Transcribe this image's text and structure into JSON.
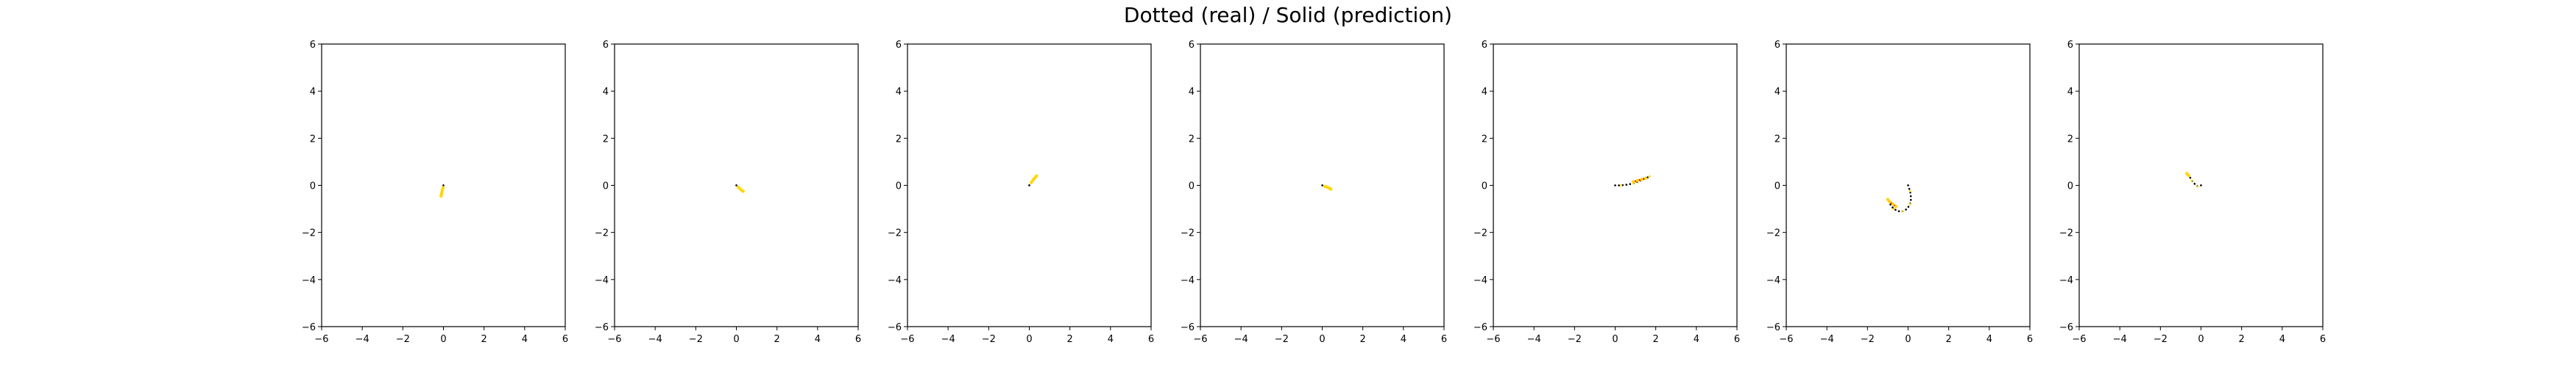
{
  "figure": {
    "title": "Dotted (real) / Solid (prediction)"
  },
  "colors": {
    "real": "#000000",
    "prediction": "#ff0000",
    "markers": "#ffd700",
    "axes": "#000000"
  },
  "chart_data": [
    {
      "type": "line",
      "xlim": [
        -6,
        6
      ],
      "ylim": [
        -6,
        6
      ],
      "xticks": [
        -6,
        -4,
        -2,
        0,
        2,
        4,
        6
      ],
      "yticks": [
        -6,
        -4,
        -2,
        0,
        2,
        4,
        6
      ],
      "series": [
        {
          "style": "dotted",
          "x": [
            0.0,
            -0.02,
            -0.05,
            -0.08,
            -0.1,
            -0.12
          ],
          "y": [
            0.0,
            -0.1,
            -0.2,
            -0.3,
            -0.4,
            -0.45
          ]
        },
        {
          "style": "solid",
          "x": [
            -0.02,
            -0.05,
            -0.08,
            -0.1,
            -0.12
          ],
          "y": [
            -0.1,
            -0.2,
            -0.3,
            -0.38,
            -0.45
          ]
        }
      ]
    },
    {
      "type": "line",
      "xlim": [
        -6,
        6
      ],
      "ylim": [
        -6,
        6
      ],
      "xticks": [
        -6,
        -4,
        -2,
        0,
        2,
        4,
        6
      ],
      "yticks": [
        -6,
        -4,
        -2,
        0,
        2,
        4,
        6
      ],
      "series": [
        {
          "style": "dotted",
          "x": [
            0.0,
            0.08,
            0.15,
            0.22,
            0.3,
            0.35
          ],
          "y": [
            0.0,
            -0.06,
            -0.12,
            -0.17,
            -0.22,
            -0.25
          ]
        },
        {
          "style": "solid",
          "x": [
            0.1,
            0.18,
            0.26,
            0.33
          ],
          "y": [
            -0.08,
            -0.15,
            -0.21,
            -0.25
          ]
        }
      ]
    },
    {
      "type": "line",
      "xlim": [
        -6,
        6
      ],
      "ylim": [
        -6,
        6
      ],
      "xticks": [
        -6,
        -4,
        -2,
        0,
        2,
        4,
        6
      ],
      "yticks": [
        -6,
        -4,
        -2,
        0,
        2,
        4,
        6
      ],
      "series": [
        {
          "style": "dotted",
          "x": [
            0.0,
            0.08,
            0.15,
            0.22,
            0.3,
            0.38,
            0.42
          ],
          "y": [
            0.0,
            0.1,
            0.2,
            0.28,
            0.35,
            0.42,
            0.48
          ]
        },
        {
          "style": "solid",
          "x": [
            0.1,
            0.18,
            0.26,
            0.34
          ],
          "y": [
            0.12,
            0.22,
            0.3,
            0.38
          ]
        }
      ]
    },
    {
      "type": "line",
      "xlim": [
        -6,
        6
      ],
      "ylim": [
        -6,
        6
      ],
      "xticks": [
        -6,
        -4,
        -2,
        0,
        2,
        4,
        6
      ],
      "yticks": [
        -6,
        -4,
        -2,
        0,
        2,
        4,
        6
      ],
      "series": [
        {
          "style": "dotted",
          "x": [
            0.0,
            0.1,
            0.2,
            0.3,
            0.4
          ],
          "y": [
            0.0,
            -0.03,
            -0.06,
            -0.1,
            -0.15
          ]
        },
        {
          "style": "solid",
          "x": [
            0.15,
            0.25,
            0.35,
            0.42
          ],
          "y": [
            -0.05,
            -0.08,
            -0.12,
            -0.16
          ]
        }
      ]
    },
    {
      "type": "line",
      "xlim": [
        -6,
        6
      ],
      "ylim": [
        -6,
        6
      ],
      "xticks": [
        -6,
        -4,
        -2,
        0,
        2,
        4,
        6
      ],
      "yticks": [
        -6,
        -4,
        -2,
        0,
        2,
        4,
        6
      ],
      "series": [
        {
          "style": "dotted",
          "x": [
            0.0,
            0.3,
            0.6,
            0.9,
            1.1,
            1.3,
            1.5,
            1.7
          ],
          "y": [
            0.0,
            0.0,
            0.03,
            0.08,
            0.15,
            0.22,
            0.3,
            0.38
          ]
        },
        {
          "style": "solid",
          "x": [
            0.9,
            1.1,
            1.3,
            1.5
          ],
          "y": [
            0.15,
            0.2,
            0.25,
            0.3
          ]
        }
      ]
    },
    {
      "type": "line",
      "xlim": [
        -6,
        6
      ],
      "ylim": [
        -6,
        6
      ],
      "xticks": [
        -6,
        -4,
        -2,
        0,
        2,
        4,
        6
      ],
      "yticks": [
        -6,
        -4,
        -2,
        0,
        2,
        4,
        6
      ],
      "series": [
        {
          "style": "dotted",
          "x": [
            0.0,
            0.1,
            0.15,
            0.1,
            -0.05,
            -0.25,
            -0.5,
            -0.7,
            -0.85,
            -0.95
          ],
          "y": [
            0.0,
            -0.25,
            -0.55,
            -0.8,
            -1.0,
            -1.1,
            -1.1,
            -1.0,
            -0.85,
            -0.65
          ]
        },
        {
          "style": "solid",
          "x": [
            -0.6,
            -0.75,
            -0.9,
            -1.0
          ],
          "y": [
            -0.9,
            -0.8,
            -0.7,
            -0.6
          ]
        }
      ]
    },
    {
      "type": "line",
      "xlim": [
        -6,
        6
      ],
      "ylim": [
        -6,
        6
      ],
      "xticks": [
        -6,
        -4,
        -2,
        0,
        2,
        4,
        6
      ],
      "yticks": [
        -6,
        -4,
        -2,
        0,
        2,
        4,
        6
      ],
      "series": [
        {
          "style": "dotted",
          "x": [
            0.0,
            -0.15,
            -0.3,
            -0.45,
            -0.55,
            -0.7
          ],
          "y": [
            0.0,
            -0.05,
            0.05,
            0.2,
            0.35,
            0.5
          ]
        },
        {
          "style": "solid",
          "x": [
            -0.6,
            -0.7
          ],
          "y": [
            0.42,
            0.5
          ]
        }
      ]
    }
  ]
}
